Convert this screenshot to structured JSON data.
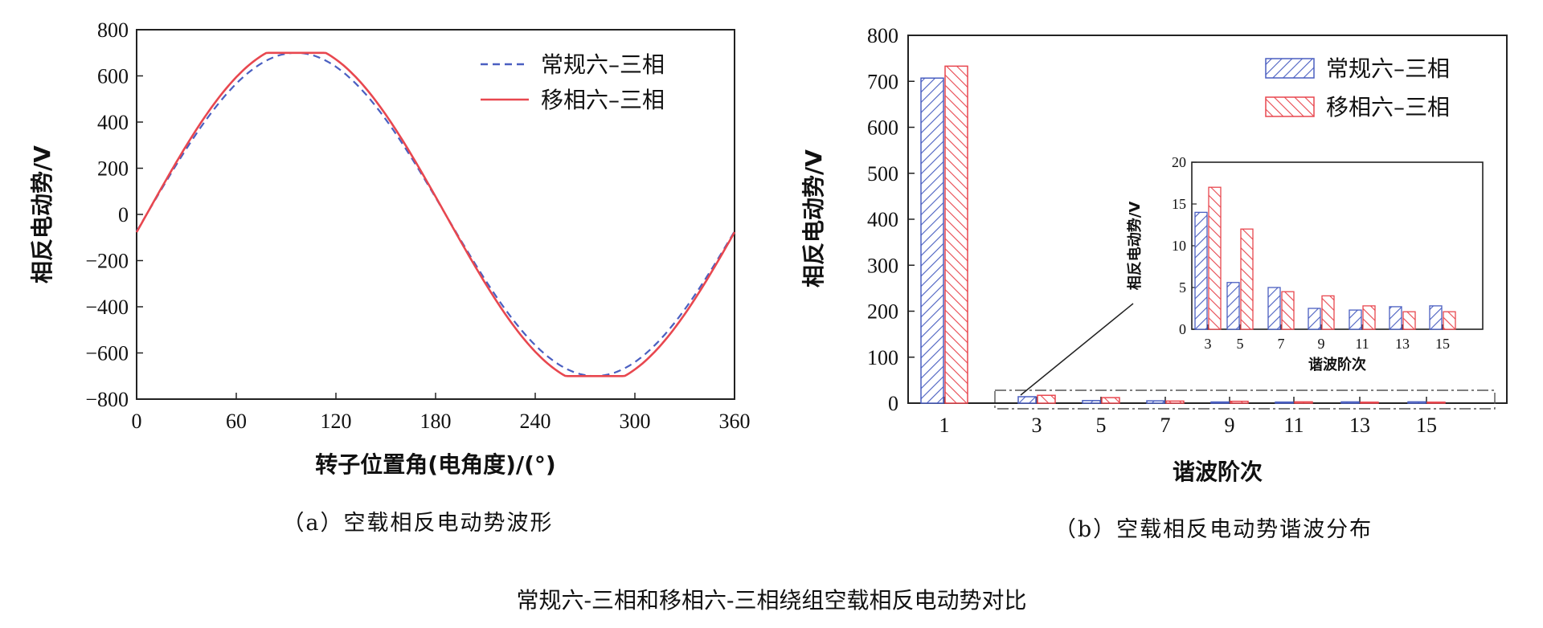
{
  "chart_data": [
    {
      "type": "line",
      "title": "",
      "xlabel": "转子位置角(电角度)/(°)",
      "ylabel": "相反电动势/V",
      "xlim": [
        0,
        360
      ],
      "ylim": [
        -800,
        800
      ],
      "xticks": [
        "0",
        "60",
        "120",
        "180",
        "240",
        "300",
        "360"
      ],
      "yticks": [
        "800",
        "600",
        "400",
        "200",
        "0",
        "−200",
        "−400",
        "−600",
        "−800"
      ],
      "series": [
        {
          "name": "常规六–三相",
          "style": "dashed",
          "color": "#4a5fc1",
          "amplitude": 700,
          "phase_deg": 6,
          "flat_top": false
        },
        {
          "name": "移相六–三相",
          "style": "solid",
          "color": "#e8474f",
          "amplitude": 735,
          "phase_deg": 6,
          "flat_top": true,
          "clip": 700
        }
      ],
      "caption": "（a）空载相反电动势波形"
    },
    {
      "type": "bar",
      "title": "",
      "xlabel": "谐波阶次",
      "ylabel": "相反电动势/V",
      "categories": [
        "1",
        "3",
        "5",
        "7",
        "9",
        "11",
        "13",
        "15"
      ],
      "ylim": [
        0,
        800
      ],
      "yticks": [
        "0",
        "100",
        "200",
        "300",
        "400",
        "500",
        "600",
        "700",
        "800"
      ],
      "series": [
        {
          "name": "常规六–三相",
          "color": "#4a5fc1",
          "values": [
            707,
            14,
            5.6,
            5,
            2.5,
            2.3,
            2.7,
            2.8
          ]
        },
        {
          "name": "移相六–三相",
          "color": "#e8474f",
          "values": [
            733,
            17,
            12,
            4.5,
            4,
            2.8,
            2.1,
            2.1
          ]
        }
      ],
      "inset": {
        "categories": [
          "3",
          "5",
          "7",
          "9",
          "11",
          "13",
          "15"
        ],
        "ylim": [
          0,
          20
        ],
        "yticks": [
          "0",
          "5",
          "10",
          "15",
          "20"
        ],
        "xlabel": "谐波阶次",
        "ylabel": "相反电动势/V"
      },
      "caption": "（b）空载相反电动势谐波分布"
    }
  ],
  "figure_caption": "常规六-三相和移相六-三相绕组空载相反电动势对比"
}
